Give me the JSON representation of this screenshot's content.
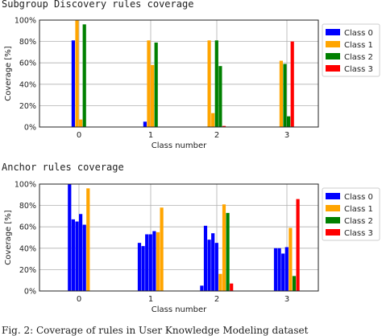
{
  "caption": "Fig. 2: Coverage of rules in User Knowledge Modeling dataset",
  "chart_data": [
    {
      "type": "bar",
      "title": "Subgroup Discovery rules coverage",
      "xlabel": "Class number",
      "ylabel": "Coverage [%]",
      "ylim": [
        0,
        100
      ],
      "yticks": [
        "0%",
        "20%",
        "40%",
        "60%",
        "80%",
        "100%"
      ],
      "categories": [
        "0",
        "1",
        "2",
        "3"
      ],
      "grid": true,
      "legend_position": "right",
      "series": [
        {
          "name": "Class 0",
          "color": "#0000ff",
          "groups": [
            [
              81
            ],
            [
              5
            ],
            [],
            []
          ]
        },
        {
          "name": "Class 1",
          "color": "#ffa500",
          "groups": [
            [
              100,
              7
            ],
            [
              81,
              58
            ],
            [
              81,
              13
            ],
            [
              62
            ]
          ]
        },
        {
          "name": "Class 2",
          "color": "#008000",
          "groups": [
            [
              96
            ],
            [
              79
            ],
            [
              81,
              57
            ],
            [
              59,
              10
            ]
          ]
        },
        {
          "name": "Class 3",
          "color": "#ff0000",
          "groups": [
            [],
            [],
            [
              1
            ],
            [
              80
            ]
          ]
        }
      ]
    },
    {
      "type": "bar",
      "title": "Anchor rules coverage",
      "xlabel": "Class number",
      "ylabel": "Coverage [%]",
      "ylim": [
        0,
        100
      ],
      "yticks": [
        "0%",
        "20%",
        "40%",
        "60%",
        "80%",
        "100%"
      ],
      "categories": [
        "0",
        "1",
        "2",
        "3"
      ],
      "grid": true,
      "legend_position": "right",
      "series": [
        {
          "name": "Class 0",
          "color": "#0000ff",
          "groups": [
            [
              100,
              67,
              65,
              72,
              62
            ],
            [
              45,
              42,
              53,
              53,
              56
            ],
            [
              5,
              61,
              48,
              54,
              45
            ],
            [
              40,
              40,
              35,
              41
            ]
          ]
        },
        {
          "name": "Class 1",
          "color": "#ffa500",
          "groups": [
            [
              96
            ],
            [
              55,
              78
            ],
            [
              16,
              81
            ],
            [
              59
            ]
          ]
        },
        {
          "name": "Class 2",
          "color": "#008000",
          "groups": [
            [],
            [],
            [
              73
            ],
            [
              14
            ]
          ]
        },
        {
          "name": "Class 3",
          "color": "#ff0000",
          "groups": [
            [],
            [],
            [
              7
            ],
            [
              86
            ]
          ]
        }
      ]
    }
  ]
}
